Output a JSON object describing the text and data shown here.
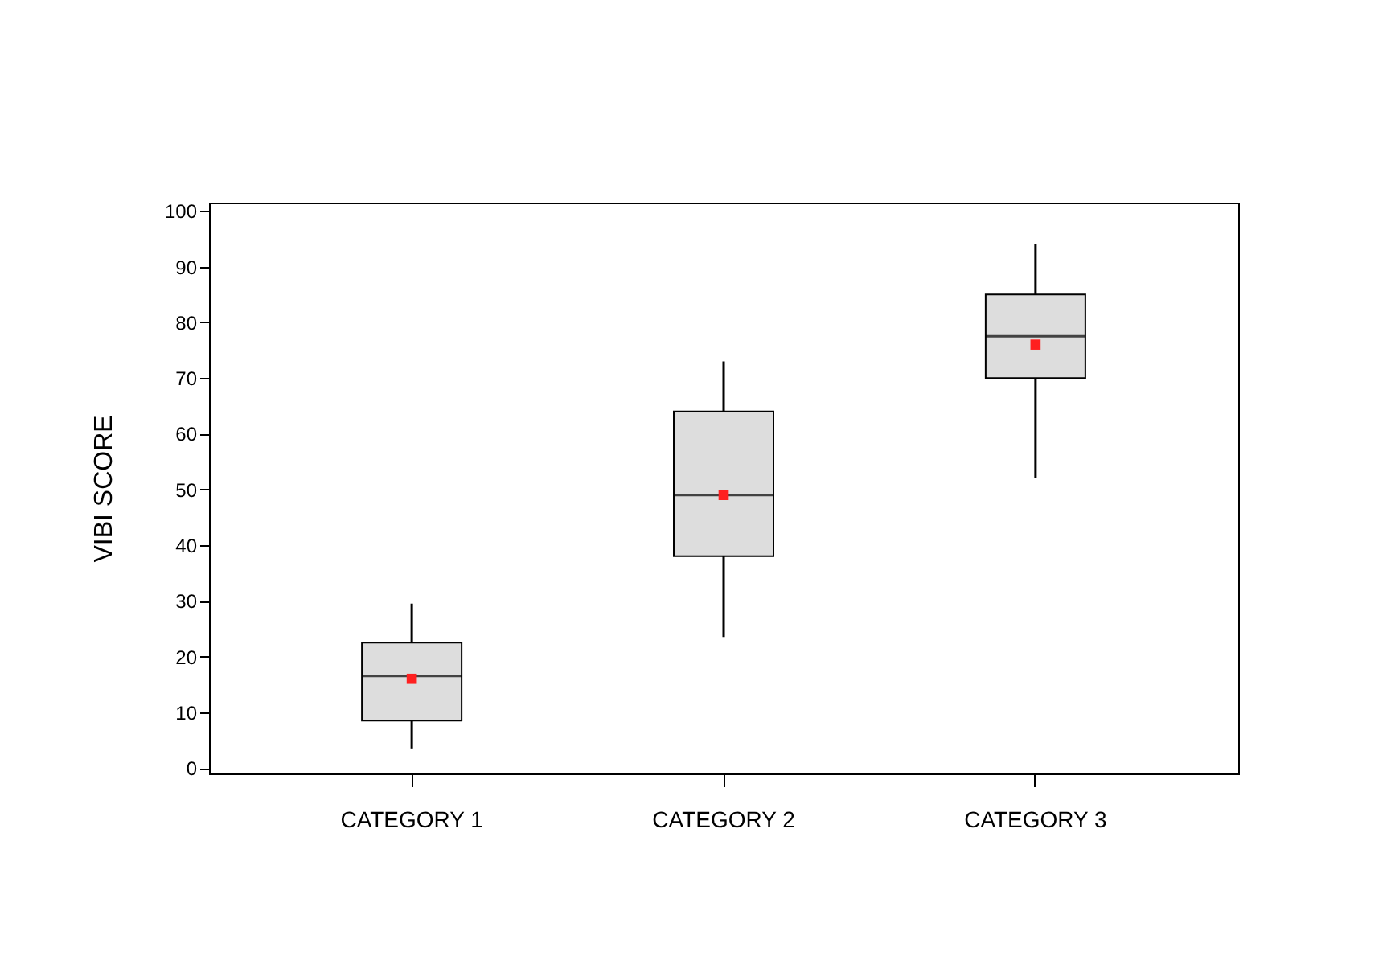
{
  "chart_data": {
    "type": "box",
    "ylabel": "VIBI SCORE",
    "categories": [
      "CATEGORY 1",
      "CATEGORY 2",
      "CATEGORY 3"
    ],
    "series": [
      {
        "color": "#dddddd",
        "boxes": [
          {
            "low": 3.5,
            "q1": 8.5,
            "median": 16.5,
            "q3": 22.5,
            "high": 29.5,
            "mean": 16
          },
          {
            "low": 23.5,
            "q1": 38,
            "median": 49,
            "q3": 64,
            "high": 73,
            "mean": 49
          },
          {
            "low": 52,
            "q1": 70,
            "median": 77.5,
            "q3": 85,
            "high": 94,
            "mean": 76
          }
        ]
      }
    ],
    "ylim": [
      -1,
      101.5
    ],
    "yticks": [
      0,
      10,
      20,
      30,
      40,
      50,
      60,
      70,
      80,
      90,
      100
    ],
    "marker": "square",
    "grid": false
  }
}
